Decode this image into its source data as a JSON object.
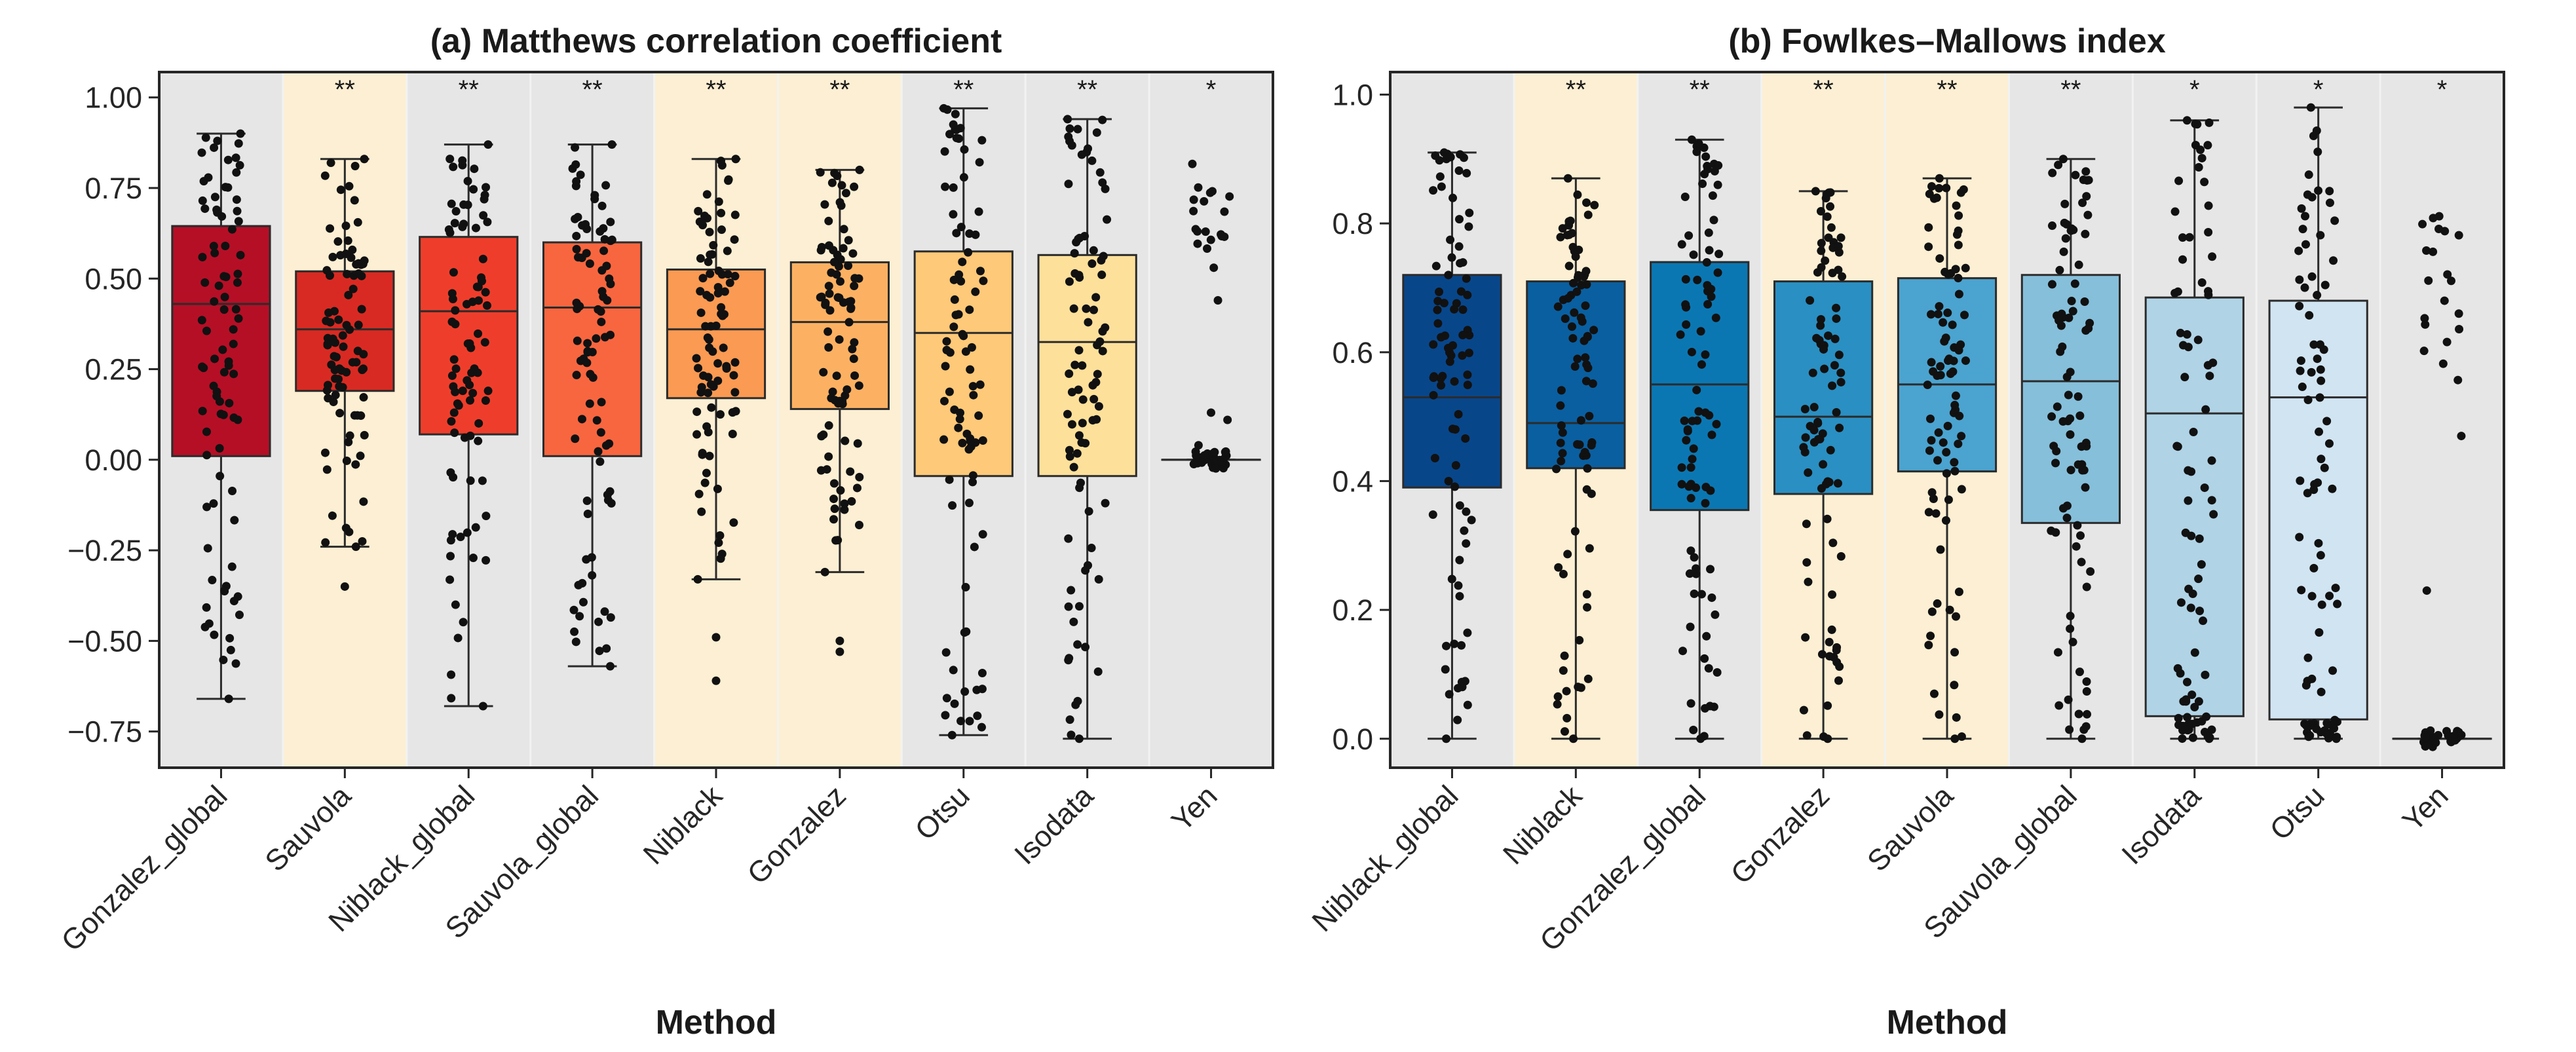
{
  "chart_data": [
    {
      "type": "box",
      "title": "(a) Matthews correlation coefficient",
      "xlabel": "Method",
      "ylabel": "",
      "ylim": [
        -0.85,
        1.07
      ],
      "yticks": [
        1.0,
        0.75,
        0.5,
        0.25,
        0.0,
        -0.25,
        -0.5,
        -0.75
      ],
      "ytick_labels": [
        "1.00",
        "0.75",
        "0.50",
        "0.25",
        "0.00",
        "−0.25",
        "−0.50",
        "−0.75"
      ],
      "grid": false,
      "categories": [
        "Gonzalez_global",
        "Sauvola",
        "Niblack_global",
        "Sauvola_global",
        "Niblack",
        "Gonzalez",
        "Otsu",
        "Isodata",
        "Yen"
      ],
      "significance": [
        "",
        "**",
        "**",
        "**",
        "**",
        "**",
        "**",
        "**",
        "*"
      ],
      "background": [
        "gray",
        "cream",
        "gray",
        "gray",
        "cream",
        "cream",
        "gray",
        "gray",
        "gray"
      ],
      "box_colors": [
        "#b50f26",
        "#d82a22",
        "#ee3e2b",
        "#f8663f",
        "#fb9a52",
        "#fcb162",
        "#fec978",
        "#fde09a",
        "#fefecf"
      ],
      "boxes": [
        {
          "whisker_low": -0.66,
          "q1": 0.01,
          "median": 0.43,
          "q3": 0.645,
          "whisker_high": 0.9
        },
        {
          "whisker_low": -0.24,
          "q1": 0.19,
          "median": 0.36,
          "q3": 0.52,
          "whisker_high": 0.83
        },
        {
          "whisker_low": -0.68,
          "q1": 0.07,
          "median": 0.41,
          "q3": 0.615,
          "whisker_high": 0.87
        },
        {
          "whisker_low": -0.57,
          "q1": 0.01,
          "median": 0.42,
          "q3": 0.6,
          "whisker_high": 0.87
        },
        {
          "whisker_low": -0.33,
          "q1": 0.17,
          "median": 0.36,
          "q3": 0.525,
          "whisker_high": 0.83
        },
        {
          "whisker_low": -0.31,
          "q1": 0.14,
          "median": 0.38,
          "q3": 0.545,
          "whisker_high": 0.8
        },
        {
          "whisker_low": -0.76,
          "q1": -0.045,
          "median": 0.35,
          "q3": 0.575,
          "whisker_high": 0.97
        },
        {
          "whisker_low": -0.77,
          "q1": -0.045,
          "median": 0.325,
          "q3": 0.565,
          "whisker_high": 0.94
        },
        {
          "whisker_low": 0.0,
          "q1": 0.0,
          "median": 0.0,
          "q3": 0.0,
          "whisker_high": 0.0
        }
      ],
      "outliers": [
        [],
        [
          -0.35
        ],
        [],
        [],
        [
          -0.49,
          -0.61
        ],
        [
          -0.5,
          -0.53
        ],
        [],
        [],
        []
      ]
    },
    {
      "type": "box",
      "title": "(b) Fowlkes–Mallows index",
      "xlabel": "Method",
      "ylabel": "",
      "ylim": [
        -0.045,
        1.035
      ],
      "yticks": [
        1.0,
        0.8,
        0.6,
        0.4,
        0.2,
        0.0
      ],
      "ytick_labels": [
        "1.0",
        "0.8",
        "0.6",
        "0.4",
        "0.2",
        "0.0"
      ],
      "grid": false,
      "categories": [
        "Niblack_global",
        "Niblack",
        "Gonzalez_global",
        "Gonzalez",
        "Sauvola",
        "Sauvola_global",
        "Isodata",
        "Otsu",
        "Yen"
      ],
      "significance": [
        "",
        "**",
        "**",
        "**",
        "**",
        "**",
        "*",
        "*",
        "*"
      ],
      "background": [
        "gray",
        "cream",
        "gray",
        "cream",
        "cream",
        "gray",
        "gray",
        "gray",
        "gray"
      ],
      "box_colors": [
        "#08468a",
        "#0a5fa0",
        "#0b77b2",
        "#2a8fc2",
        "#4ba3cf",
        "#86bfda",
        "#b0d3e6",
        "#d1e4f2",
        "#eaf3fa"
      ],
      "boxes": [
        {
          "whisker_low": 0.0,
          "q1": 0.39,
          "median": 0.53,
          "q3": 0.72,
          "whisker_high": 0.91
        },
        {
          "whisker_low": 0.0,
          "q1": 0.42,
          "median": 0.49,
          "q3": 0.71,
          "whisker_high": 0.87
        },
        {
          "whisker_low": 0.0,
          "q1": 0.355,
          "median": 0.55,
          "q3": 0.74,
          "whisker_high": 0.93
        },
        {
          "whisker_low": 0.0,
          "q1": 0.38,
          "median": 0.5,
          "q3": 0.71,
          "whisker_high": 0.85
        },
        {
          "whisker_low": 0.0,
          "q1": 0.415,
          "median": 0.55,
          "q3": 0.715,
          "whisker_high": 0.87
        },
        {
          "whisker_low": 0.0,
          "q1": 0.335,
          "median": 0.555,
          "q3": 0.72,
          "whisker_high": 0.9
        },
        {
          "whisker_low": 0.0,
          "q1": 0.035,
          "median": 0.505,
          "q3": 0.685,
          "whisker_high": 0.96
        },
        {
          "whisker_low": 0.0,
          "q1": 0.03,
          "median": 0.53,
          "q3": 0.68,
          "whisker_high": 0.98
        },
        {
          "whisker_low": 0.0,
          "q1": 0.0,
          "median": 0.0,
          "q3": 0.0,
          "whisker_high": 0.0
        }
      ],
      "outliers": [
        [],
        [],
        [],
        [],
        [],
        [],
        [],
        [],
        []
      ]
    }
  ]
}
